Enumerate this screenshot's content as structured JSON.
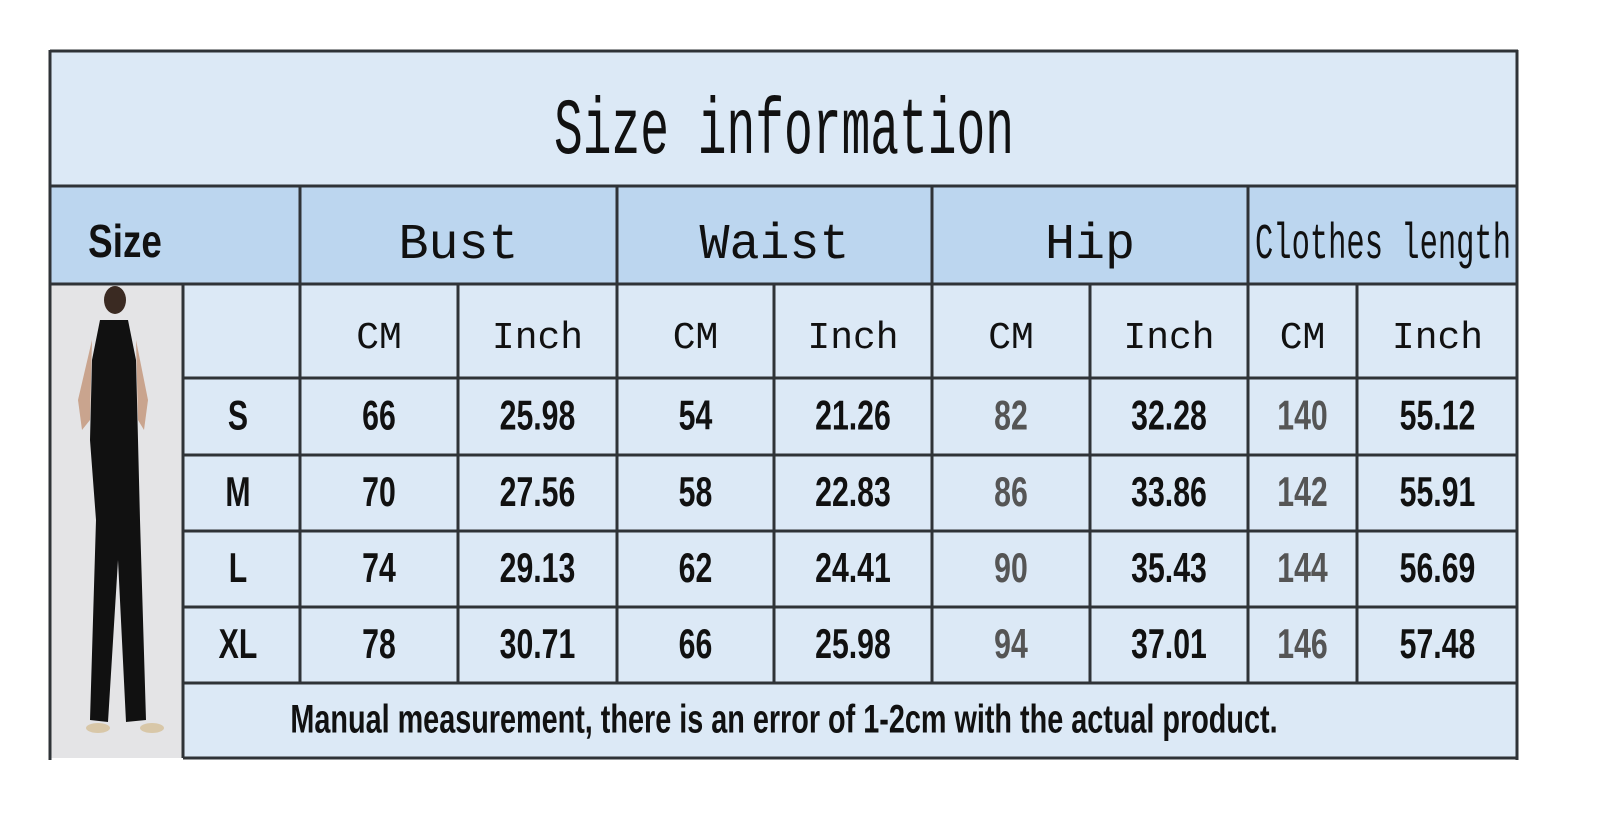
{
  "title": "Size information",
  "table": {
    "headers": [
      "Size",
      "Bust",
      "Waist",
      "Hip",
      "Clothes length"
    ],
    "subheaders": [
      "CM",
      "Inch",
      "CM",
      "Inch",
      "CM",
      "Inch",
      "CM",
      "Inch"
    ],
    "rows": [
      [
        "S",
        "66",
        "25.98",
        "54",
        "21.26",
        "82",
        "32.28",
        "140",
        "55.12"
      ],
      [
        "M",
        "70",
        "27.56",
        "58",
        "22.83",
        "86",
        "33.86",
        "142",
        "55.91"
      ],
      [
        "L",
        "74",
        "29.13",
        "62",
        "24.41",
        "90",
        "35.43",
        "144",
        "56.69"
      ],
      [
        "XL",
        "78",
        "30.71",
        "66",
        "25.98",
        "94",
        "37.01",
        "146",
        "57.48"
      ]
    ],
    "note": "Manual measurement, there is an error of 1-2cm with the actual product."
  }
}
